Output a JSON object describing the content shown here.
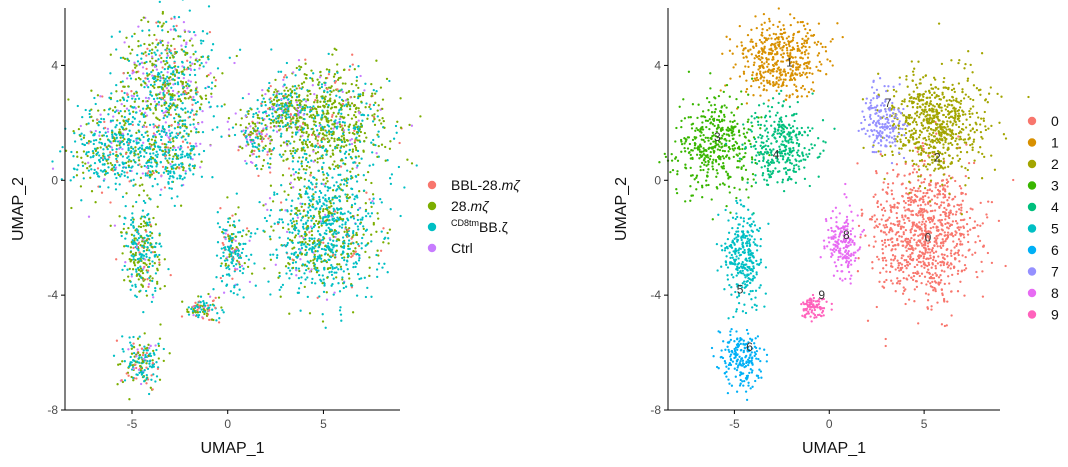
{
  "chart_data": [
    {
      "type": "scatter",
      "xlabel": "UMAP_1",
      "ylabel": "UMAP_2",
      "xlim": [
        -8.5,
        9
      ],
      "ylim": [
        -8,
        6
      ],
      "x_ticks": [
        -5,
        0,
        5
      ],
      "x_tick_labels": [
        "-5",
        "0",
        "5"
      ],
      "y_ticks": [
        -8,
        -4,
        0,
        4
      ],
      "y_tick_labels": [
        "-8",
        "-4",
        "0",
        "4"
      ],
      "grid": false,
      "legend_position": "right",
      "legend": [
        {
          "label": "BBL-28.mζ",
          "parts": [
            {
              "t": "BBL-28."
            },
            {
              "t": "mζ",
              "italic": true
            }
          ],
          "color": "#F8766D"
        },
        {
          "label": "28.mζ",
          "parts": [
            {
              "t": "28."
            },
            {
              "t": "mζ",
              "italic": true
            }
          ],
          "color": "#7CAE00"
        },
        {
          "label": "CD8tmBB.ζ",
          "parts": [
            {
              "t": "CD8tm",
              "sup": true
            },
            {
              "t": "BB.ζ"
            }
          ],
          "color": "#00BFC4"
        },
        {
          "label": "Ctrl",
          "parts": [
            {
              "t": "Ctrl"
            }
          ],
          "color": "#C77CFF"
        }
      ],
      "cells_per_region_scale": 1,
      "regions": [
        {
          "cx": -3.2,
          "cy": 3.3,
          "rx": 2.5,
          "ry": 2.3,
          "n": 700,
          "mix": [
            0.08,
            0.42,
            0.34,
            0.16
          ]
        },
        {
          "cx": -6.0,
          "cy": 1.2,
          "rx": 2.2,
          "ry": 1.7,
          "n": 420,
          "mix": [
            0.06,
            0.25,
            0.62,
            0.07
          ]
        },
        {
          "cx": -3.0,
          "cy": 0.9,
          "rx": 1.8,
          "ry": 1.3,
          "n": 280,
          "mix": [
            0.06,
            0.24,
            0.62,
            0.08
          ]
        },
        {
          "cx": 5.2,
          "cy": 2.0,
          "rx": 3.0,
          "ry": 2.0,
          "n": 800,
          "mix": [
            0.05,
            0.62,
            0.28,
            0.05
          ]
        },
        {
          "cx": 5.0,
          "cy": -1.8,
          "rx": 2.8,
          "ry": 2.3,
          "n": 900,
          "mix": [
            0.04,
            0.3,
            0.62,
            0.04
          ]
        },
        {
          "cx": 1.5,
          "cy": 1.6,
          "rx": 1.0,
          "ry": 1.1,
          "n": 170,
          "mix": [
            0.1,
            0.4,
            0.3,
            0.2
          ]
        },
        {
          "cx": 3.0,
          "cy": 2.6,
          "rx": 1.0,
          "ry": 0.9,
          "n": 160,
          "mix": [
            0.05,
            0.45,
            0.35,
            0.15
          ]
        },
        {
          "cx": -4.5,
          "cy": -2.5,
          "rx": 1.0,
          "ry": 1.6,
          "n": 300,
          "mix": [
            0.1,
            0.4,
            0.45,
            0.05
          ]
        },
        {
          "cx": 0.3,
          "cy": -2.4,
          "rx": 0.9,
          "ry": 1.3,
          "n": 180,
          "mix": [
            0.1,
            0.2,
            0.6,
            0.1
          ]
        },
        {
          "cx": -1.2,
          "cy": -4.5,
          "rx": 1.1,
          "ry": 0.4,
          "n": 100,
          "mix": [
            0.2,
            0.25,
            0.45,
            0.1
          ]
        },
        {
          "cx": -4.5,
          "cy": -6.3,
          "rx": 1.1,
          "ry": 0.9,
          "n": 180,
          "mix": [
            0.12,
            0.3,
            0.5,
            0.08
          ]
        }
      ]
    },
    {
      "type": "scatter",
      "xlabel": "UMAP_1",
      "ylabel": "UMAP_2",
      "xlim": [
        -8.5,
        9
      ],
      "ylim": [
        -8,
        6
      ],
      "x_ticks": [
        -5,
        0,
        5
      ],
      "x_tick_labels": [
        "-5",
        "0",
        "5"
      ],
      "y_ticks": [
        -8,
        -4,
        0,
        4
      ],
      "y_tick_labels": [
        "-8",
        "-4",
        "0",
        "4"
      ],
      "grid": false,
      "legend_position": "right",
      "legend": [
        {
          "label": "0",
          "color": "#F8766D"
        },
        {
          "label": "1",
          "color": "#D89000"
        },
        {
          "label": "2",
          "color": "#A3A500"
        },
        {
          "label": "3",
          "color": "#39B600"
        },
        {
          "label": "4",
          "color": "#00BF7D"
        },
        {
          "label": "5",
          "color": "#00BFC4"
        },
        {
          "label": "6",
          "color": "#00B0F6"
        },
        {
          "label": "7",
          "color": "#9590FF"
        },
        {
          "label": "8",
          "color": "#E76BF3"
        },
        {
          "label": "9",
          "color": "#FF62BC"
        }
      ],
      "clusters": [
        {
          "id": "0",
          "cx": 5.0,
          "cy": -1.8,
          "rx": 2.8,
          "ry": 2.3,
          "n": 900,
          "label_x": 5.2,
          "label_y": -2.0
        },
        {
          "id": "1",
          "cx": -2.6,
          "cy": 4.2,
          "rx": 2.2,
          "ry": 1.4,
          "n": 450,
          "label_x": -2.1,
          "label_y": 4.1
        },
        {
          "id": "2",
          "cx": 5.6,
          "cy": 2.0,
          "rx": 2.6,
          "ry": 1.9,
          "n": 700,
          "label_x": 5.7,
          "label_y": 0.8
        },
        {
          "id": "3",
          "cx": -6.0,
          "cy": 1.2,
          "rx": 2.2,
          "ry": 1.6,
          "n": 420,
          "label_x": -5.9,
          "label_y": 1.5
        },
        {
          "id": "4",
          "cx": -2.5,
          "cy": 1.2,
          "rx": 1.8,
          "ry": 1.3,
          "n": 330,
          "label_x": -2.8,
          "label_y": 0.9
        },
        {
          "id": "5",
          "cx": -4.5,
          "cy": -2.7,
          "rx": 1.0,
          "ry": 1.6,
          "n": 300,
          "label_x": -4.7,
          "label_y": -3.8
        },
        {
          "id": "6",
          "cx": -4.6,
          "cy": -6.2,
          "rx": 1.1,
          "ry": 1.0,
          "n": 200,
          "label_x": -4.2,
          "label_y": -5.8
        },
        {
          "id": "7",
          "cx": 2.8,
          "cy": 2.0,
          "rx": 1.0,
          "ry": 1.2,
          "n": 180,
          "label_x": 3.1,
          "label_y": 2.7
        },
        {
          "id": "8",
          "cx": 0.7,
          "cy": -2.2,
          "rx": 0.9,
          "ry": 1.2,
          "n": 180,
          "label_x": 0.9,
          "label_y": -1.9
        },
        {
          "id": "9",
          "cx": -0.8,
          "cy": -4.4,
          "rx": 0.8,
          "ry": 0.4,
          "n": 90,
          "label_x": -0.4,
          "label_y": -4.0
        }
      ]
    }
  ]
}
